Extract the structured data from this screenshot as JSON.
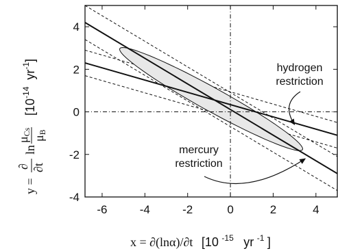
{
  "chart_data": {
    "type": "line",
    "title": "",
    "xlabel": "x = ∂(lnα)/∂t  [10⁻¹⁵ yr⁻¹]",
    "xlabel_parts": {
      "lhs": "x = ∂(lnα)/∂t",
      "unit_open": "[10",
      "unit_exp": "-15",
      "unit_mid": "yr",
      "unit_exp2": "-1",
      "unit_close": "]"
    },
    "ylabel": "y = ∂/∂t ln(μCs/μB)  [10⁻¹⁴ yr⁻¹]",
    "ylabel_parts": {
      "lhs": "y =",
      "d_num": "∂",
      "d_den": "∂t",
      "ln": "ln",
      "mu_num": "μ",
      "mu_num_sub": "Cs",
      "mu_den": "μ",
      "mu_den_sub": "B",
      "unit_open": "[10",
      "unit_exp": "-14",
      "unit_mid": "yr",
      "unit_exp2": "-1",
      "unit_close": "]"
    },
    "xlim": [
      -6.8,
      5
    ],
    "ylim": [
      -4,
      5
    ],
    "xticks": [
      -6,
      -4,
      -2,
      0,
      2,
      4
    ],
    "yticks": [
      4,
      2,
      0,
      -2,
      -4
    ],
    "grid": false,
    "series": [
      {
        "role": "central",
        "x": [
          -6.8,
          5
        ],
        "y": [
          4.2,
          -2.9
        ]
      },
      {
        "role": "central",
        "x": [
          -6.8,
          5
        ],
        "y": [
          2.3,
          -1.1
        ]
      }
    ],
    "bounds": [
      {
        "x": [
          -6.8,
          5
        ],
        "y": [
          5.0,
          -2.1
        ]
      },
      {
        "x": [
          -6.8,
          5
        ],
        "y": [
          3.4,
          -3.7
        ]
      },
      {
        "x": [
          -6.8,
          5
        ],
        "y": [
          2.9,
          -0.5
        ]
      },
      {
        "x": [
          -6.8,
          5
        ],
        "y": [
          1.7,
          -1.7
        ]
      }
    ],
    "ellipse": {
      "cx": -0.9,
      "cy": 0.6,
      "rx": 4.9,
      "ry": 0.55,
      "angle_deg": -29
    },
    "zero_lines": {
      "x": 0,
      "y": 0
    },
    "annotations": [
      {
        "lines": [
          "hydrogen",
          "restriction"
        ],
        "arrow_to": [
          3.0,
          -0.6
        ]
      },
      {
        "lines": [
          "mercury",
          "restriction"
        ],
        "arrow_to": [
          3.5,
          -2.2
        ]
      }
    ]
  }
}
